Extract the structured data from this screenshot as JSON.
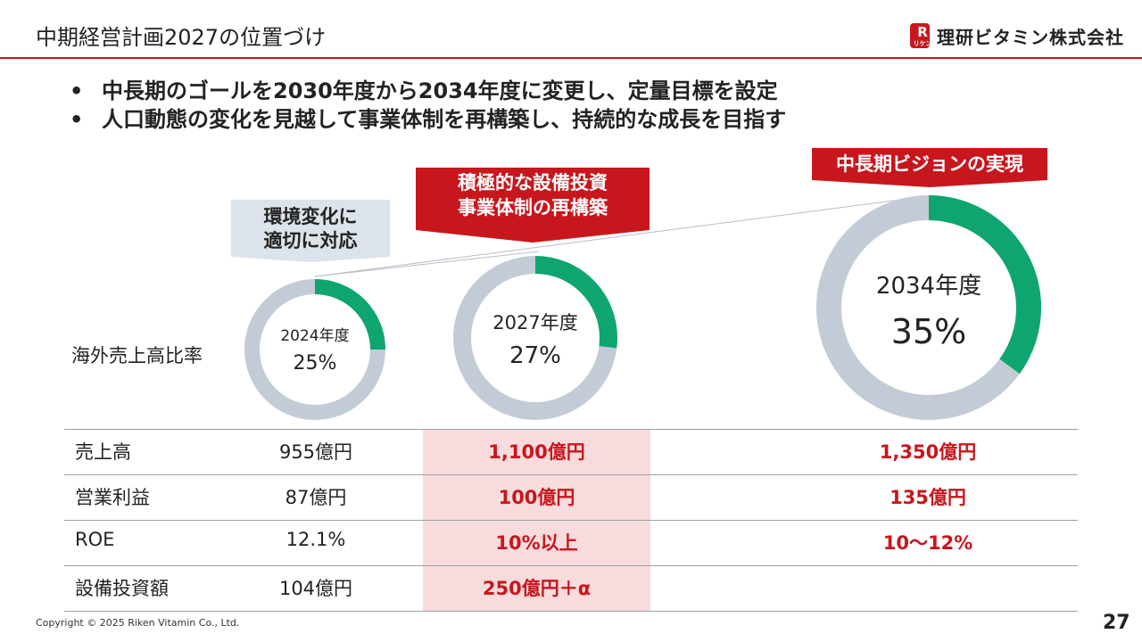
{
  "header": {
    "title": "中期経営計画2027の位置づけ",
    "logo_text": "理研ビタミン株式会社",
    "logo_mark_letter": "R",
    "logo_mark_sub": "リケン"
  },
  "bullets": [
    "中長期のゴールを2030年度から2034年度に変更し、定量目標を設定",
    "人口動態の変化を見越して事業体制を再構築し、持続的な成長を目指す"
  ],
  "bullet_marker": "•",
  "callouts": {
    "left": [
      "環境変化に",
      "適切に対応"
    ],
    "middle": [
      "積極的な設備投資",
      "事業体制の再構築"
    ],
    "right": "中長期ビジョンの実現"
  },
  "overseas_ratio_label": "海外売上高比率",
  "donuts": [
    {
      "year": "2024年度",
      "percent_text": "25%",
      "value": 25
    },
    {
      "year": "2027年度",
      "percent_text": "27%",
      "value": 27
    },
    {
      "year": "2034年度",
      "percent_text": "35%",
      "value": 35
    }
  ],
  "colors": {
    "accent_red": "#c8161d",
    "donut_fill": "#0ea66e",
    "donut_track": "#c3ccd6",
    "highlight_band": "#f8dbdd",
    "left_callout_bg": "#dde3ea"
  },
  "table": {
    "rows": [
      {
        "label": "売上高",
        "fy2024": "955億円",
        "fy2027": "1,100億円",
        "fy2034": "1,350億円"
      },
      {
        "label": "営業利益",
        "fy2024": "87億円",
        "fy2027": "100億円",
        "fy2034": "135億円"
      },
      {
        "label": "ROE",
        "fy2024": "12.1%",
        "fy2027": "10%以上",
        "fy2034": "10～12%"
      },
      {
        "label": "設備投資額",
        "fy2024": "104億円",
        "fy2027": "250億円＋α",
        "fy2034": ""
      }
    ]
  },
  "footer": {
    "copyright": "Copyright © 2025 Riken Vitamin Co., Ltd.",
    "page_number": "27"
  }
}
